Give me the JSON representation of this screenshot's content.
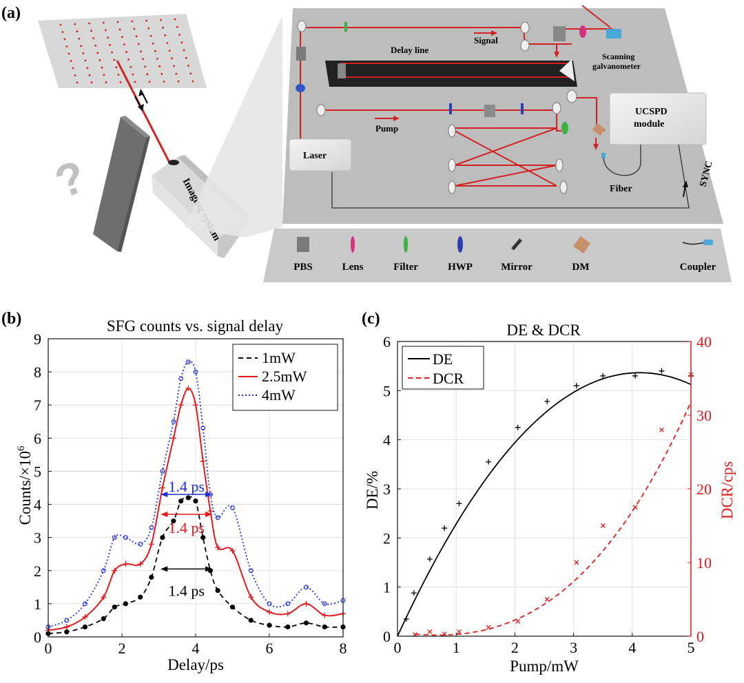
{
  "panel_labels": {
    "a": "(a)",
    "b": "(b)",
    "c": "(c)"
  },
  "setup": {
    "imaging_system": "Imaging system",
    "question_mark": "?",
    "delay_line": "Delay line",
    "signal": "Signal",
    "scanning_galvanometer_line1": "Scanning",
    "scanning_galvanometer_line2": "galvanometer",
    "pump": "Pump",
    "laser": "Laser",
    "ucspd_line1": "UCSPD",
    "ucspd_line2": "module",
    "fiber": "Fiber",
    "sync": "SYNC",
    "legend": [
      "PBS",
      "Lens",
      "Filter",
      "HWP",
      "Mirror",
      "DM",
      "Coupler"
    ],
    "colors": {
      "beam": "#d42020",
      "platform": "#bdbdbd",
      "legend_strip": "#c9c9c9"
    }
  },
  "chart_data": [
    {
      "id": "b",
      "type": "line",
      "title": "SFG counts vs. signal delay",
      "xlabel": "Delay/ps",
      "ylabel": "Counts/×10",
      "ylabel_exp": "6",
      "xlim": [
        0,
        8
      ],
      "ylim": [
        0,
        9
      ],
      "xticks": [
        "0",
        "2",
        "4",
        "6",
        "8"
      ],
      "yticks": [
        "0",
        "1",
        "2",
        "3",
        "4",
        "5",
        "6",
        "7",
        "8",
        "9"
      ],
      "grid": true,
      "legend_position": "top-right",
      "series": [
        {
          "name": "1mW",
          "color": "#000000",
          "style": "dashed",
          "marker": "dot",
          "x": [
            0,
            0.5,
            1,
            1.5,
            1.8,
            2.1,
            2.5,
            2.8,
            3.1,
            3.4,
            3.6,
            3.8,
            4,
            4.2,
            4.4,
            4.6,
            5,
            5.5,
            6,
            6.5,
            7,
            7.5,
            8
          ],
          "y": [
            0.1,
            0.15,
            0.3,
            0.55,
            0.9,
            1.0,
            1.2,
            1.8,
            3.0,
            3.5,
            4.1,
            4.2,
            4.1,
            3.0,
            2.0,
            1.4,
            0.9,
            0.5,
            0.35,
            0.3,
            0.42,
            0.3,
            0.3
          ]
        },
        {
          "name": "2.5mW",
          "color": "#e31a1c",
          "style": "solid",
          "marker": "plus",
          "x": [
            0,
            0.5,
            1,
            1.5,
            1.8,
            2.1,
            2.5,
            2.8,
            3.1,
            3.4,
            3.6,
            3.8,
            4,
            4.2,
            4.4,
            4.6,
            5,
            5.5,
            6,
            6.5,
            7,
            7.5,
            8
          ],
          "y": [
            0.2,
            0.3,
            0.6,
            1.2,
            2.0,
            2.2,
            2.2,
            2.8,
            4.5,
            6.0,
            7.0,
            7.5,
            7.0,
            5.3,
            3.8,
            2.7,
            2.6,
            1.2,
            0.75,
            0.7,
            1.0,
            0.65,
            0.7
          ]
        },
        {
          "name": "4mW",
          "color": "#1f2fd8",
          "style": "dotted",
          "marker": "circle",
          "x": [
            0,
            0.5,
            1,
            1.5,
            1.8,
            2.1,
            2.5,
            2.8,
            3.1,
            3.4,
            3.6,
            3.8,
            4,
            4.2,
            4.4,
            4.6,
            5,
            5.5,
            6,
            6.5,
            7,
            7.5,
            8
          ],
          "y": [
            0.3,
            0.5,
            1.0,
            2.0,
            3.0,
            3.0,
            2.8,
            3.3,
            5.0,
            6.5,
            7.8,
            8.3,
            8.0,
            6.3,
            4.3,
            3.6,
            3.9,
            2.0,
            1.0,
            1.0,
            1.5,
            1.0,
            1.1
          ]
        }
      ],
      "annotations": [
        {
          "text": "1.4 ps",
          "color": "#1f2fd8",
          "x0": 3.05,
          "x1": 4.45,
          "y": 4.3,
          "ty": 4.55
        },
        {
          "text": "1.4 ps",
          "color": "#e31a1c",
          "x0": 3.05,
          "x1": 4.45,
          "y": 3.7,
          "ty": 3.3
        },
        {
          "text": "1.4 ps",
          "color": "#000000",
          "x0": 3.05,
          "x1": 4.45,
          "y": 2.05,
          "ty": 1.4
        }
      ]
    },
    {
      "id": "c",
      "type": "line",
      "title": "DE & DCR",
      "xlabel": "Pump/mW",
      "ylabel_left": "DE/%",
      "ylabel_right": "DCR/cps",
      "xlim": [
        0,
        5
      ],
      "ylim_left": [
        0,
        6
      ],
      "ylim_right": [
        0,
        40
      ],
      "xticks": [
        "0",
        "1",
        "2",
        "3",
        "4",
        "5"
      ],
      "yticks_left": [
        "0",
        "1",
        "2",
        "3",
        "4",
        "5",
        "6"
      ],
      "yticks_right": [
        "0",
        "10",
        "20",
        "30",
        "40"
      ],
      "grid": true,
      "legend_position": "top-left",
      "series": [
        {
          "name": "DE",
          "color": "#000000",
          "style": "solid",
          "axis": "left",
          "points_x": [
            0.15,
            0.28,
            0.55,
            0.8,
            1.05,
            1.55,
            2.05,
            2.55,
            3.05,
            3.5,
            4.05,
            4.5,
            5.0
          ],
          "points_y": [
            0.35,
            0.88,
            1.57,
            2.2,
            2.7,
            3.55,
            4.25,
            4.78,
            5.1,
            5.3,
            5.3,
            5.4,
            5.3
          ],
          "fit_coeffs": [
            0,
            2.6,
            -0.315
          ]
        },
        {
          "name": "DCR",
          "color": "#e31a1c",
          "style": "dashed",
          "axis": "right",
          "points_x": [
            0.3,
            0.55,
            0.8,
            1.05,
            1.55,
            2.05,
            2.55,
            3.05,
            3.5,
            4.05,
            4.5,
            5.0
          ],
          "points_y": [
            0.2,
            0.6,
            0.3,
            0.6,
            1.2,
            2.0,
            5.0,
            10.0,
            15.0,
            17.5,
            28.0,
            35.5
          ],
          "fit_coeffs": [
            0.55,
            -1.1,
            0.62,
            0.17
          ]
        }
      ]
    }
  ]
}
